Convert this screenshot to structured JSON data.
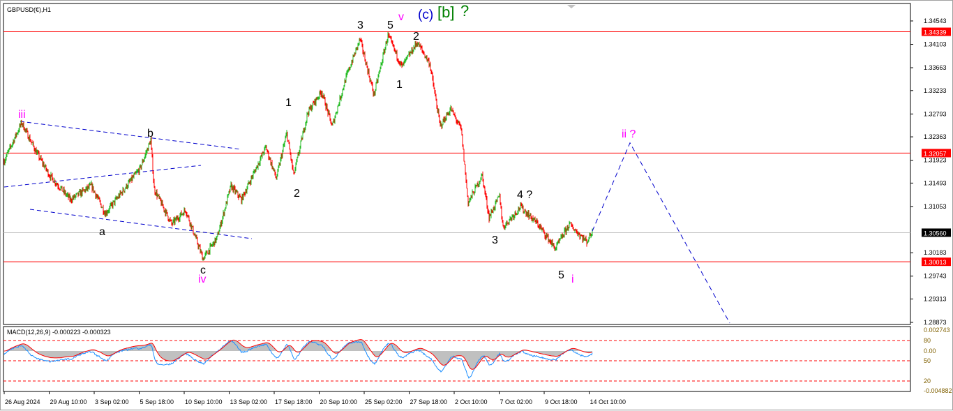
{
  "window": {
    "title": "GBPUSD(€),H1"
  },
  "macd": {
    "label": "MACD(12,26,9) -0.000223 -0.000323",
    "scale": [
      "0.002743",
      "80",
      "0.00",
      "50",
      "20",
      "-0.004882"
    ]
  },
  "colors": {
    "bull": "#22bb22",
    "bear": "#ff0000",
    "level_line": "#ff0000",
    "trendline": "#0000cc",
    "macd_hist": "#c0c0c0",
    "macd_signal": "#ff0000",
    "macd_line": "#1e90ff"
  },
  "chart_data": {
    "type": "candlestick",
    "symbol": "GBPUSD(€)",
    "timeframe": "H1",
    "price_ticks": [
      "1.34543",
      "1.34103",
      "1.33663",
      "1.33233",
      "1.32793",
      "1.32363",
      "1.31923",
      "1.31493",
      "1.31053",
      "1.30183",
      "1.29743",
      "1.29313",
      "1.28873"
    ],
    "ylim": [
      1.28873,
      1.34543
    ],
    "time_ticks": [
      "26 Aug 2024",
      "29 Aug 10:00",
      "3 Sep 02:00",
      "5 Sep 18:00",
      "10 Sep 10:00",
      "13 Sep 02:00",
      "17 Sep 18:00",
      "20 Sep 10:00",
      "25 Sep 02:00",
      "27 Sep 18:00",
      "2 Oct 10:00",
      "7 Oct 02:00",
      "9 Oct 18:00",
      "14 Oct 10:00"
    ],
    "price_path": [
      [
        0,
        1.3191
      ],
      [
        25,
        1.3263
      ],
      [
        45,
        1.321
      ],
      [
        65,
        1.3164
      ],
      [
        95,
        1.3118
      ],
      [
        125,
        1.3144
      ],
      [
        145,
        1.3092
      ],
      [
        195,
        1.3177
      ],
      [
        210,
        1.323
      ],
      [
        215,
        1.3138
      ],
      [
        240,
        1.3072
      ],
      [
        260,
        1.3099
      ],
      [
        285,
        1.3007
      ],
      [
        305,
        1.3046
      ],
      [
        325,
        1.3144
      ],
      [
        340,
        1.3118
      ],
      [
        375,
        1.3217
      ],
      [
        390,
        1.3158
      ],
      [
        405,
        1.3243
      ],
      [
        415,
        1.3164
      ],
      [
        435,
        1.3282
      ],
      [
        455,
        1.3322
      ],
      [
        470,
        1.3256
      ],
      [
        490,
        1.3348
      ],
      [
        510,
        1.342
      ],
      [
        530,
        1.3315
      ],
      [
        550,
        1.3427
      ],
      [
        570,
        1.3368
      ],
      [
        592,
        1.3414
      ],
      [
        610,
        1.3374
      ],
      [
        625,
        1.3256
      ],
      [
        640,
        1.3289
      ],
      [
        655,
        1.325
      ],
      [
        665,
        1.3112
      ],
      [
        685,
        1.3164
      ],
      [
        695,
        1.3085
      ],
      [
        710,
        1.3125
      ],
      [
        715,
        1.3066
      ],
      [
        740,
        1.3105
      ],
      [
        765,
        1.3072
      ],
      [
        790,
        1.3026
      ],
      [
        810,
        1.3072
      ],
      [
        835,
        1.3039
      ],
      [
        843,
        1.3059
      ]
    ],
    "levels": [
      {
        "price": "1.34339",
        "color": "#ff0000"
      },
      {
        "price": "1.32057",
        "color": "#ff0000"
      },
      {
        "price": "1.30560",
        "color": "#000000",
        "current": true
      },
      {
        "price": "1.30013",
        "color": "#ff0000"
      }
    ],
    "projection": [
      [
        843,
        1.3059
      ],
      [
        897,
        1.3225
      ],
      [
        1040,
        1.2886
      ]
    ],
    "wave_labels": [
      {
        "text": "iii",
        "color": "#ff00ff"
      },
      {
        "text": "b",
        "color": "#000000"
      },
      {
        "text": "a",
        "color": "#000000"
      },
      {
        "text": "c",
        "color": "#000000"
      },
      {
        "text": "iv",
        "color": "#ff00ff"
      },
      {
        "text": "1",
        "color": "#000000"
      },
      {
        "text": "2",
        "color": "#000000"
      },
      {
        "text": "3",
        "color": "#000000"
      },
      {
        "text": "5",
        "color": "#000000"
      },
      {
        "text": "v",
        "color": "#ff00ff"
      },
      {
        "text": "(c)",
        "color": "#0000cc"
      },
      {
        "text": "[b]",
        "color": "#008000"
      },
      {
        "text": "?",
        "color": "#008000"
      },
      {
        "text": "2",
        "color": "#000000"
      },
      {
        "text": "1",
        "color": "#000000"
      },
      {
        "text": "3",
        "color": "#000000"
      },
      {
        "text": "4 ?",
        "color": "#000000"
      },
      {
        "text": "5",
        "color": "#000000"
      },
      {
        "text": "i",
        "color": "#ff00ff"
      },
      {
        "text": "ii ?",
        "color": "#ff00ff"
      }
    ]
  }
}
